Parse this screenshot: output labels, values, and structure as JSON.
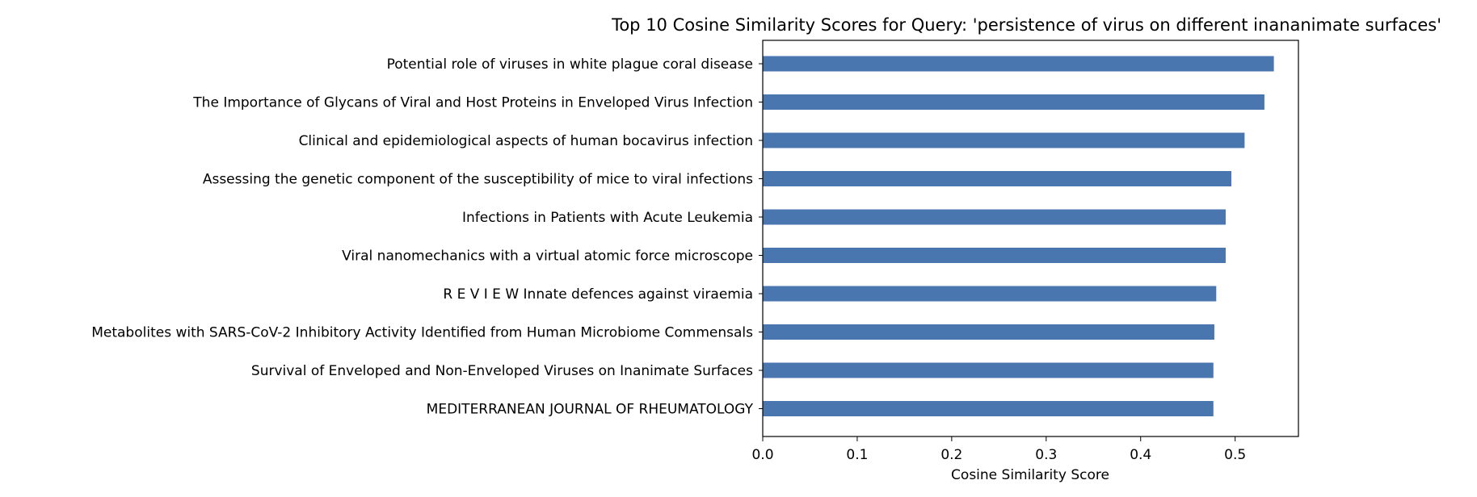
{
  "chart_data": {
    "type": "bar",
    "orientation": "horizontal",
    "title": "Top 10 Cosine Similarity Scores for Query: 'persistence of virus on different inananimate surfaces'",
    "xlabel": "Cosine Similarity Score",
    "ylabel": "",
    "categories": [
      "Potential role of viruses in white plague coral disease",
      "The Importance of Glycans of Viral and Host Proteins in Enveloped Virus Infection",
      "Clinical and epidemiological aspects of human bocavirus infection",
      "Assessing the genetic component of the susceptibility of mice to viral infections",
      "Infections in Patients with Acute Leukemia",
      "Viral nanomechanics with a virtual atomic force microscope",
      "R E V I E W Innate defences against viraemia",
      "Metabolites with SARS-CoV-2 Inhibitory Activity Identified from Human Microbiome Commensals",
      "Survival of Enveloped and Non-Enveloped Viruses on Inanimate Surfaces",
      "MEDITERRANEAN JOURNAL OF RHEUMATOLOGY"
    ],
    "values": [
      0.541,
      0.531,
      0.51,
      0.496,
      0.49,
      0.49,
      0.48,
      0.478,
      0.477,
      0.477
    ],
    "xlim": [
      0.0,
      0.567
    ],
    "xticks": [
      "0.0",
      "0.1",
      "0.2",
      "0.3",
      "0.4",
      "0.5"
    ],
    "grid": false,
    "bar_color": "#4a76b0"
  }
}
